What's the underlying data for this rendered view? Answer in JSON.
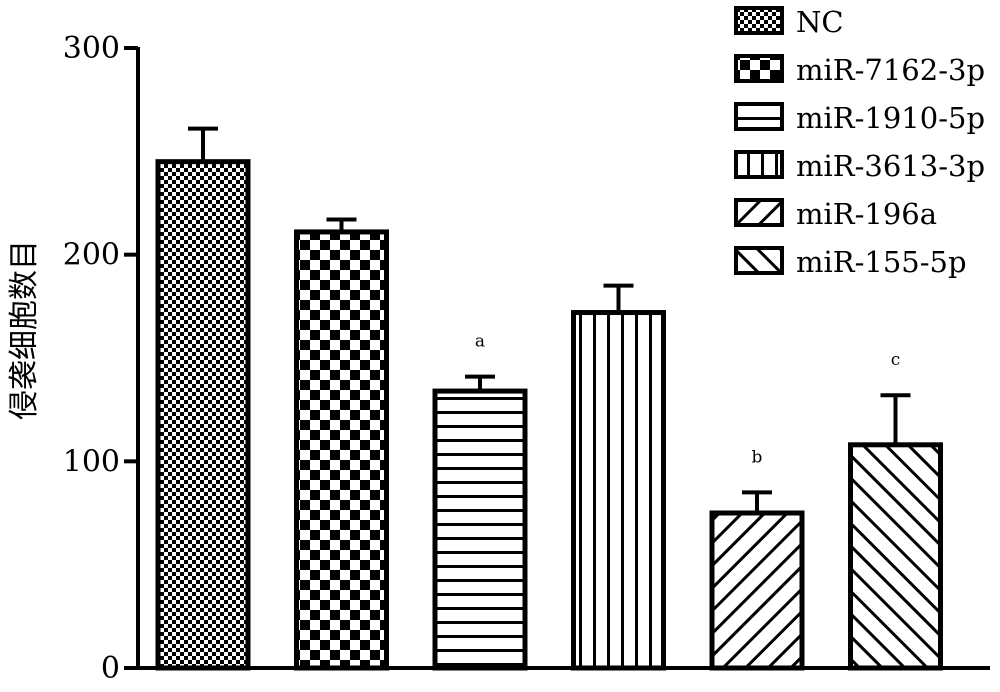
{
  "chart_data": {
    "type": "bar",
    "title": "",
    "xlabel": "",
    "ylabel": "侵袭细胞数目",
    "ylim": [
      0,
      300
    ],
    "yticks": [
      0,
      100,
      200,
      300
    ],
    "categories": [
      "NC",
      "miR-7162-3p",
      "miR-1910-5p",
      "miR-3613-3p",
      "miR-196a",
      "miR-155-5p"
    ],
    "values": [
      245,
      211,
      134,
      172,
      75,
      108
    ],
    "errors": [
      16,
      6,
      7,
      13,
      10,
      24
    ],
    "significance": [
      "",
      "",
      "a",
      "",
      "b",
      "c"
    ],
    "patterns": [
      "fine-check",
      "checker",
      "hstripe",
      "vstripe",
      "diag-up",
      "diag-down"
    ],
    "legend": {
      "position": "top-right",
      "entries": [
        "NC",
        "miR-7162-3p",
        "miR-1910-5p",
        "miR-3613-3p",
        "miR-196a",
        "miR-155-5p"
      ]
    },
    "grid": false
  },
  "colors": {
    "ink": "#000000",
    "paper": "#ffffff"
  }
}
